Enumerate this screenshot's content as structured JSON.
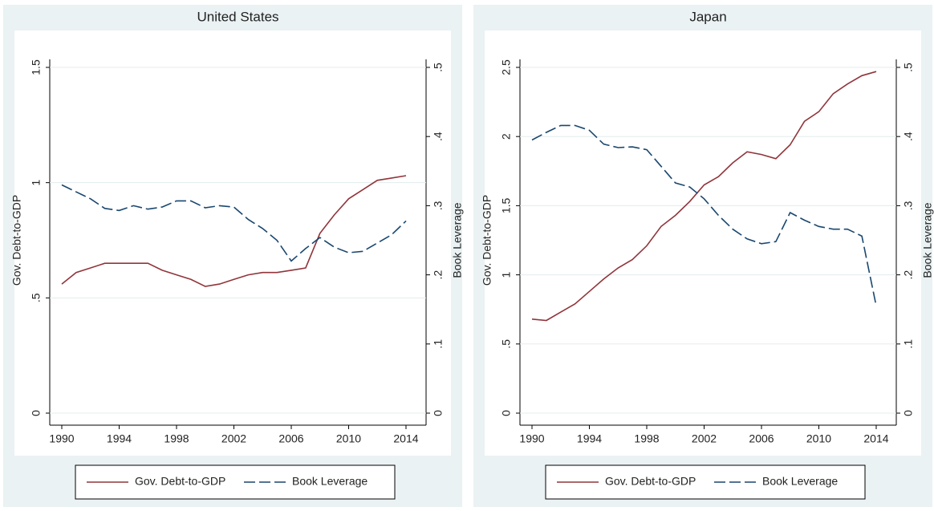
{
  "chart_data": [
    {
      "type": "line",
      "title": "United States",
      "ylabel": "Gov. Debt-to-GDP",
      "y2label": "Book Leverage",
      "x": [
        1990,
        1991,
        1992,
        1993,
        1994,
        1995,
        1996,
        1997,
        1998,
        1999,
        2000,
        2001,
        2002,
        2003,
        2004,
        2005,
        2006,
        2007,
        2008,
        2009,
        2010,
        2011,
        2012,
        2013,
        2014
      ],
      "series": [
        {
          "name": "Gov. Debt-to-GDP",
          "color": "#90353b",
          "line_style": "solid",
          "values": [
            0.56,
            0.61,
            0.63,
            0.65,
            0.65,
            0.65,
            0.65,
            0.62,
            0.6,
            0.58,
            0.55,
            0.56,
            0.58,
            0.6,
            0.61,
            0.61,
            0.62,
            0.63,
            0.78,
            0.86,
            0.93,
            0.97,
            1.01,
            1.02,
            1.03
          ]
        },
        {
          "name": "Book Leverage",
          "color": "#1a476f",
          "line_style": "dashed",
          "axis": "y2",
          "values": [
            0.33,
            0.32,
            0.31,
            0.296,
            0.293,
            0.3,
            0.295,
            0.298,
            0.307,
            0.307,
            0.297,
            0.3,
            0.298,
            0.28,
            0.267,
            0.25,
            0.22,
            0.238,
            0.254,
            0.24,
            0.232,
            0.234,
            0.246,
            0.258,
            0.278
          ]
        }
      ],
      "xlim": [
        1989.16,
        2015.4
      ],
      "xticks": [
        1990,
        1994,
        1998,
        2002,
        2006,
        2010,
        2014
      ],
      "ylim": [
        0,
        1.5
      ],
      "yticks": [
        0,
        {
          "value": 0.5,
          "label": ".5"
        },
        1,
        1.5
      ],
      "y2lim": [
        0,
        0.5
      ],
      "y2ticks": [
        0,
        {
          "value": 0.1,
          "label": ".1"
        },
        {
          "value": 0.2,
          "label": ".2"
        },
        {
          "value": 0.3,
          "label": ".3"
        },
        {
          "value": 0.4,
          "label": ".4"
        },
        {
          "value": 0.5,
          "label": ".5"
        }
      ],
      "grid": true,
      "legend": "bottom"
    },
    {
      "type": "line",
      "title": "Japan",
      "ylabel": "Gov. Debt-to-GDP",
      "y2label": "Book Leverage",
      "x": [
        1990,
        1991,
        1992,
        1993,
        1994,
        1995,
        1996,
        1997,
        1998,
        1999,
        2000,
        2001,
        2002,
        2003,
        2004,
        2005,
        2006,
        2007,
        2008,
        2009,
        2010,
        2011,
        2012,
        2013,
        2014
      ],
      "series": [
        {
          "name": "Gov. Debt-to-GDP",
          "color": "#90353b",
          "line_style": "solid",
          "values": [
            0.68,
            0.67,
            0.73,
            0.79,
            0.88,
            0.97,
            1.05,
            1.11,
            1.21,
            1.35,
            1.43,
            1.53,
            1.65,
            1.71,
            1.81,
            1.89,
            1.87,
            1.84,
            1.94,
            2.11,
            2.18,
            2.31,
            2.38,
            2.44,
            2.47
          ]
        },
        {
          "name": "Book Leverage",
          "color": "#1a476f",
          "line_style": "dashed",
          "axis": "y2",
          "values": [
            0.395,
            0.406,
            0.416,
            0.416,
            0.409,
            0.389,
            0.384,
            0.385,
            0.381,
            0.357,
            0.333,
            0.327,
            0.31,
            0.286,
            0.266,
            0.252,
            0.245,
            0.248,
            0.29,
            0.279,
            0.27,
            0.266,
            0.266,
            0.256,
            0.155
          ]
        }
      ],
      "xlim": [
        1989.16,
        2015.4
      ],
      "xticks": [
        1990,
        1994,
        1998,
        2002,
        2006,
        2010,
        2014
      ],
      "ylim": [
        0,
        2.5
      ],
      "yticks": [
        0,
        {
          "value": 0.5,
          "label": ".5"
        },
        1,
        1.5,
        2,
        2.5
      ],
      "y2lim": [
        0,
        0.5
      ],
      "y2ticks": [
        0,
        {
          "value": 0.1,
          "label": ".1"
        },
        {
          "value": 0.2,
          "label": ".2"
        },
        {
          "value": 0.3,
          "label": ".3"
        },
        {
          "value": 0.4,
          "label": ".4"
        },
        {
          "value": 0.5,
          "label": ".5"
        }
      ],
      "grid": true,
      "legend": "bottom"
    }
  ]
}
